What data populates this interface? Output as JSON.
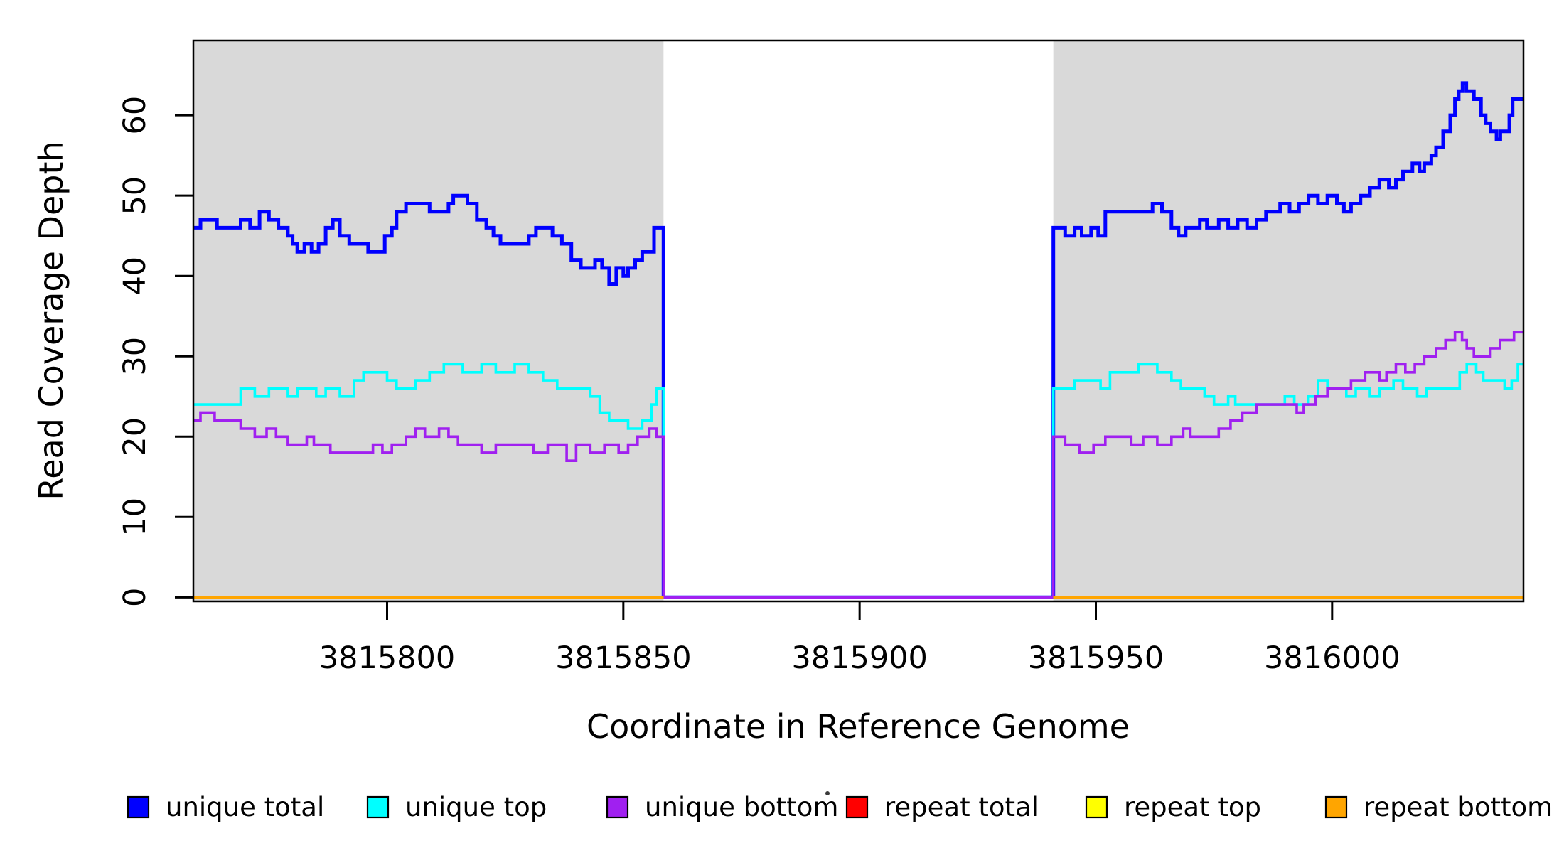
{
  "chart_data": {
    "type": "line",
    "subtype": "step-coverage-plot",
    "title": "",
    "xlabel": "Coordinate in Reference Genome",
    "ylabel": "Read Coverage Depth",
    "x_ticks": [
      3815800,
      3815850,
      3815900,
      3815950,
      3816000
    ],
    "y_ticks": [
      0,
      10,
      20,
      30,
      40,
      50,
      60
    ],
    "xlim": [
      3815759,
      3816040.5
    ],
    "ylim": [
      -0.5,
      69.3
    ],
    "grid": false,
    "legend_position": "bottom",
    "plot_bg": "#ffffff",
    "shading_color": "#d9d9d9",
    "shaded_repeat_regions": [
      [
        3815759,
        3815858.5
      ],
      [
        3815941,
        3816040.5
      ]
    ],
    "coverage_gap": [
      3815858.5,
      3815941
    ],
    "series": [
      {
        "name": "unique total",
        "color": "#0000ff",
        "lwd": 5,
        "segments": [
          [
            [
              3815759,
              46
            ],
            [
              3815760.5,
              47
            ],
            [
              3815764,
              46
            ],
            [
              3815769,
              47
            ],
            [
              3815771,
              46
            ],
            [
              3815773,
              48
            ],
            [
              3815775,
              47
            ],
            [
              3815777,
              46
            ],
            [
              3815779,
              45
            ],
            [
              3815780,
              44
            ],
            [
              3815781,
              43
            ],
            [
              3815782.5,
              44
            ],
            [
              3815784,
              43
            ],
            [
              3815785.5,
              44
            ],
            [
              3815787,
              46
            ],
            [
              3815788.5,
              47
            ],
            [
              3815790,
              45
            ],
            [
              3815792,
              44
            ],
            [
              3815796,
              43
            ],
            [
              3815799.5,
              45
            ],
            [
              3815801,
              46
            ],
            [
              3815802,
              48
            ],
            [
              3815804,
              49
            ],
            [
              3815809,
              48
            ],
            [
              3815813,
              49
            ],
            [
              3815814,
              50
            ],
            [
              3815817,
              49
            ],
            [
              3815819,
              47
            ],
            [
              3815821,
              46
            ],
            [
              3815822.5,
              45
            ],
            [
              3815824,
              44
            ],
            [
              3815830,
              45
            ],
            [
              3815831.5,
              46
            ],
            [
              3815835,
              45
            ],
            [
              3815837,
              44
            ],
            [
              3815839,
              42
            ],
            [
              3815841,
              41
            ],
            [
              3815844,
              42
            ],
            [
              3815845.5,
              41
            ],
            [
              3815847,
              39
            ],
            [
              3815848.5,
              41
            ],
            [
              3815850,
              40
            ],
            [
              3815851,
              41
            ],
            [
              3815852.5,
              42
            ],
            [
              3815854,
              43
            ],
            [
              3815856.5,
              46
            ],
            [
              3815858.5,
              0
            ],
            [
              3815941,
              46
            ],
            [
              3815943.5,
              45
            ],
            [
              3815945.5,
              46
            ],
            [
              3815947,
              45
            ],
            [
              3815949,
              46
            ],
            [
              3815950.5,
              45
            ],
            [
              3815952,
              48
            ],
            [
              3815962,
              49
            ],
            [
              3815964,
              48
            ],
            [
              3815966,
              46
            ],
            [
              3815967.5,
              45
            ],
            [
              3815969,
              46
            ],
            [
              3815972,
              47
            ],
            [
              3815973.5,
              46
            ],
            [
              3815976,
              47
            ],
            [
              3815978,
              46
            ],
            [
              3815980,
              47
            ],
            [
              3815982,
              46
            ],
            [
              3815984,
              47
            ],
            [
              3815986,
              48
            ],
            [
              3815989,
              49
            ],
            [
              3815991,
              48
            ],
            [
              3815993,
              49
            ],
            [
              3815995,
              50
            ],
            [
              3815997,
              49
            ],
            [
              3815999,
              50
            ],
            [
              3816001,
              49
            ],
            [
              3816002.5,
              48
            ],
            [
              3816004,
              49
            ],
            [
              3816006,
              50
            ],
            [
              3816008,
              51
            ],
            [
              3816010,
              52
            ],
            [
              3816012,
              51
            ],
            [
              3816013.5,
              52
            ],
            [
              3816015,
              53
            ],
            [
              3816017,
              54
            ],
            [
              3816018.5,
              53
            ],
            [
              3816019.5,
              54
            ],
            [
              3816021,
              55
            ],
            [
              3816022,
              56
            ],
            [
              3816023.5,
              58
            ],
            [
              3816025,
              60
            ],
            [
              3816026,
              62
            ],
            [
              3816026.8,
              63
            ],
            [
              3816027.6,
              64
            ],
            [
              3816028.4,
              63
            ],
            [
              3816030,
              62
            ],
            [
              3816031.5,
              60
            ],
            [
              3816032.5,
              59
            ],
            [
              3816033.5,
              58
            ],
            [
              3816034.8,
              57
            ],
            [
              3816035.6,
              58
            ],
            [
              3816037.5,
              60
            ],
            [
              3816038.2,
              62
            ],
            [
              3816040.5,
              62
            ]
          ]
        ]
      },
      {
        "name": "unique top",
        "color": "#00ffff",
        "lwd": 3.6,
        "segments": [
          [
            [
              3815759,
              24
            ],
            [
              3815769,
              26
            ],
            [
              3815772,
              25
            ],
            [
              3815775,
              26
            ],
            [
              3815779,
              25
            ],
            [
              3815781,
              26
            ],
            [
              3815785,
              25
            ],
            [
              3815787,
              26
            ],
            [
              3815790,
              25
            ],
            [
              3815793,
              27
            ],
            [
              3815795,
              28
            ],
            [
              3815800,
              27
            ],
            [
              3815802,
              26
            ],
            [
              3815806,
              27
            ],
            [
              3815809,
              28
            ],
            [
              3815812,
              29
            ],
            [
              3815816,
              28
            ],
            [
              3815820,
              29
            ],
            [
              3815823,
              28
            ],
            [
              3815827,
              29
            ],
            [
              3815830,
              28
            ],
            [
              3815833,
              27
            ],
            [
              3815836,
              26
            ],
            [
              3815843,
              25
            ],
            [
              3815845,
              23
            ],
            [
              3815847,
              22
            ],
            [
              3815851,
              21
            ],
            [
              3815854,
              22
            ],
            [
              3815856,
              24
            ],
            [
              3815857,
              26
            ],
            [
              3815858.5,
              0
            ],
            [
              3815941,
              26
            ],
            [
              3815945.5,
              27
            ],
            [
              3815951,
              26
            ],
            [
              3815953,
              28
            ],
            [
              3815959,
              29
            ],
            [
              3815963,
              28
            ],
            [
              3815966,
              27
            ],
            [
              3815968,
              26
            ],
            [
              3815973,
              25
            ],
            [
              3815975,
              24
            ],
            [
              3815978,
              25
            ],
            [
              3815979.5,
              24
            ],
            [
              3815988,
              24
            ],
            [
              3815990,
              25
            ],
            [
              3815992,
              24
            ],
            [
              3815995,
              25
            ],
            [
              3815997,
              27
            ],
            [
              3815999,
              26
            ],
            [
              3816003,
              25
            ],
            [
              3816005,
              26
            ],
            [
              3816008,
              25
            ],
            [
              3816010,
              26
            ],
            [
              3816013,
              27
            ],
            [
              3816015,
              26
            ],
            [
              3816018,
              25
            ],
            [
              3816020,
              26
            ],
            [
              3816027,
              28
            ],
            [
              3816028.5,
              29
            ],
            [
              3816030.5,
              28
            ],
            [
              3816032,
              27
            ],
            [
              3816036.5,
              26
            ],
            [
              3816038,
              27
            ],
            [
              3816039.3,
              29
            ],
            [
              3816040.5,
              29
            ]
          ]
        ]
      },
      {
        "name": "unique bottom",
        "color": "#a020f0",
        "lwd": 3.6,
        "segments": [
          [
            [
              3815759,
              22
            ],
            [
              3815760.5,
              23
            ],
            [
              3815763.5,
              22
            ],
            [
              3815769,
              21
            ],
            [
              3815772,
              20
            ],
            [
              3815774.5,
              21
            ],
            [
              3815776.5,
              20
            ],
            [
              3815779,
              19
            ],
            [
              3815783,
              20
            ],
            [
              3815784.5,
              19
            ],
            [
              3815788,
              18
            ],
            [
              3815797,
              19
            ],
            [
              3815799,
              18
            ],
            [
              3815801,
              19
            ],
            [
              3815804,
              20
            ],
            [
              3815806,
              21
            ],
            [
              3815808,
              20
            ],
            [
              3815811,
              21
            ],
            [
              3815813,
              20
            ],
            [
              3815815,
              19
            ],
            [
              3815820,
              18
            ],
            [
              3815823,
              19
            ],
            [
              3815831,
              18
            ],
            [
              3815834,
              19
            ],
            [
              3815838,
              17
            ],
            [
              3815840,
              19
            ],
            [
              3815843,
              18
            ],
            [
              3815846,
              19
            ],
            [
              3815849,
              18
            ],
            [
              3815851,
              19
            ],
            [
              3815853,
              20
            ],
            [
              3815855.5,
              21
            ],
            [
              3815857,
              20
            ],
            [
              3815858.5,
              0
            ],
            [
              3815941,
              20
            ],
            [
              3815943.5,
              19
            ],
            [
              3815946.5,
              18
            ],
            [
              3815949.5,
              19
            ],
            [
              3815952,
              20
            ],
            [
              3815957.5,
              19
            ],
            [
              3815960,
              20
            ],
            [
              3815963,
              19
            ],
            [
              3815966,
              20
            ],
            [
              3815968.5,
              21
            ],
            [
              3815970,
              20
            ],
            [
              3815976,
              21
            ],
            [
              3815978.5,
              22
            ],
            [
              3815981,
              23
            ],
            [
              3815984,
              24
            ],
            [
              3815991,
              24
            ],
            [
              3815992.5,
              23
            ],
            [
              3815994,
              24
            ],
            [
              3815996.5,
              25
            ],
            [
              3815999,
              26
            ],
            [
              3816004,
              27
            ],
            [
              3816007,
              28
            ],
            [
              3816010,
              27
            ],
            [
              3816011.5,
              28
            ],
            [
              3816013.5,
              29
            ],
            [
              3816015.5,
              28
            ],
            [
              3816017.5,
              29
            ],
            [
              3816019.5,
              30
            ],
            [
              3816022,
              31
            ],
            [
              3816024,
              32
            ],
            [
              3816026,
              33
            ],
            [
              3816027.5,
              32
            ],
            [
              3816028.5,
              31
            ],
            [
              3816030,
              30
            ],
            [
              3816033.5,
              31
            ],
            [
              3816035.5,
              32
            ],
            [
              3816038.5,
              33
            ],
            [
              3816040.5,
              33
            ]
          ]
        ]
      },
      {
        "name": "repeat total",
        "color": "#ff0000",
        "lwd": 3.6,
        "segments": [
          [
            [
              3815759,
              0
            ],
            [
              3815858.5,
              0
            ]
          ],
          [
            [
              3815941,
              0
            ],
            [
              3816040.5,
              0
            ]
          ]
        ]
      },
      {
        "name": "repeat top",
        "color": "#ffff00",
        "lwd": 3.6,
        "segments": [
          [
            [
              3815759,
              0
            ],
            [
              3815858.5,
              0
            ]
          ],
          [
            [
              3815941,
              0
            ],
            [
              3816040.5,
              0
            ]
          ]
        ]
      },
      {
        "name": "repeat bottom",
        "color": "#ffa500",
        "lwd": 4.5,
        "segments": [
          [
            [
              3815759,
              0
            ],
            [
              3815858.5,
              0
            ]
          ],
          [
            [
              3815941,
              0
            ],
            [
              3816040.5,
              0
            ]
          ]
        ]
      }
    ]
  },
  "legend": {
    "items": [
      {
        "label": "unique total",
        "color": "#0000ff"
      },
      {
        "label": "unique top",
        "color": "#00ffff"
      },
      {
        "label": "unique bottom",
        "color": "#a020f0"
      },
      {
        "label": "repeat total",
        "color": "#ff0000"
      },
      {
        "label": "repeat top",
        "color": "#ffff00"
      },
      {
        "label": "repeat bottom",
        "color": "#ffa500"
      }
    ]
  }
}
